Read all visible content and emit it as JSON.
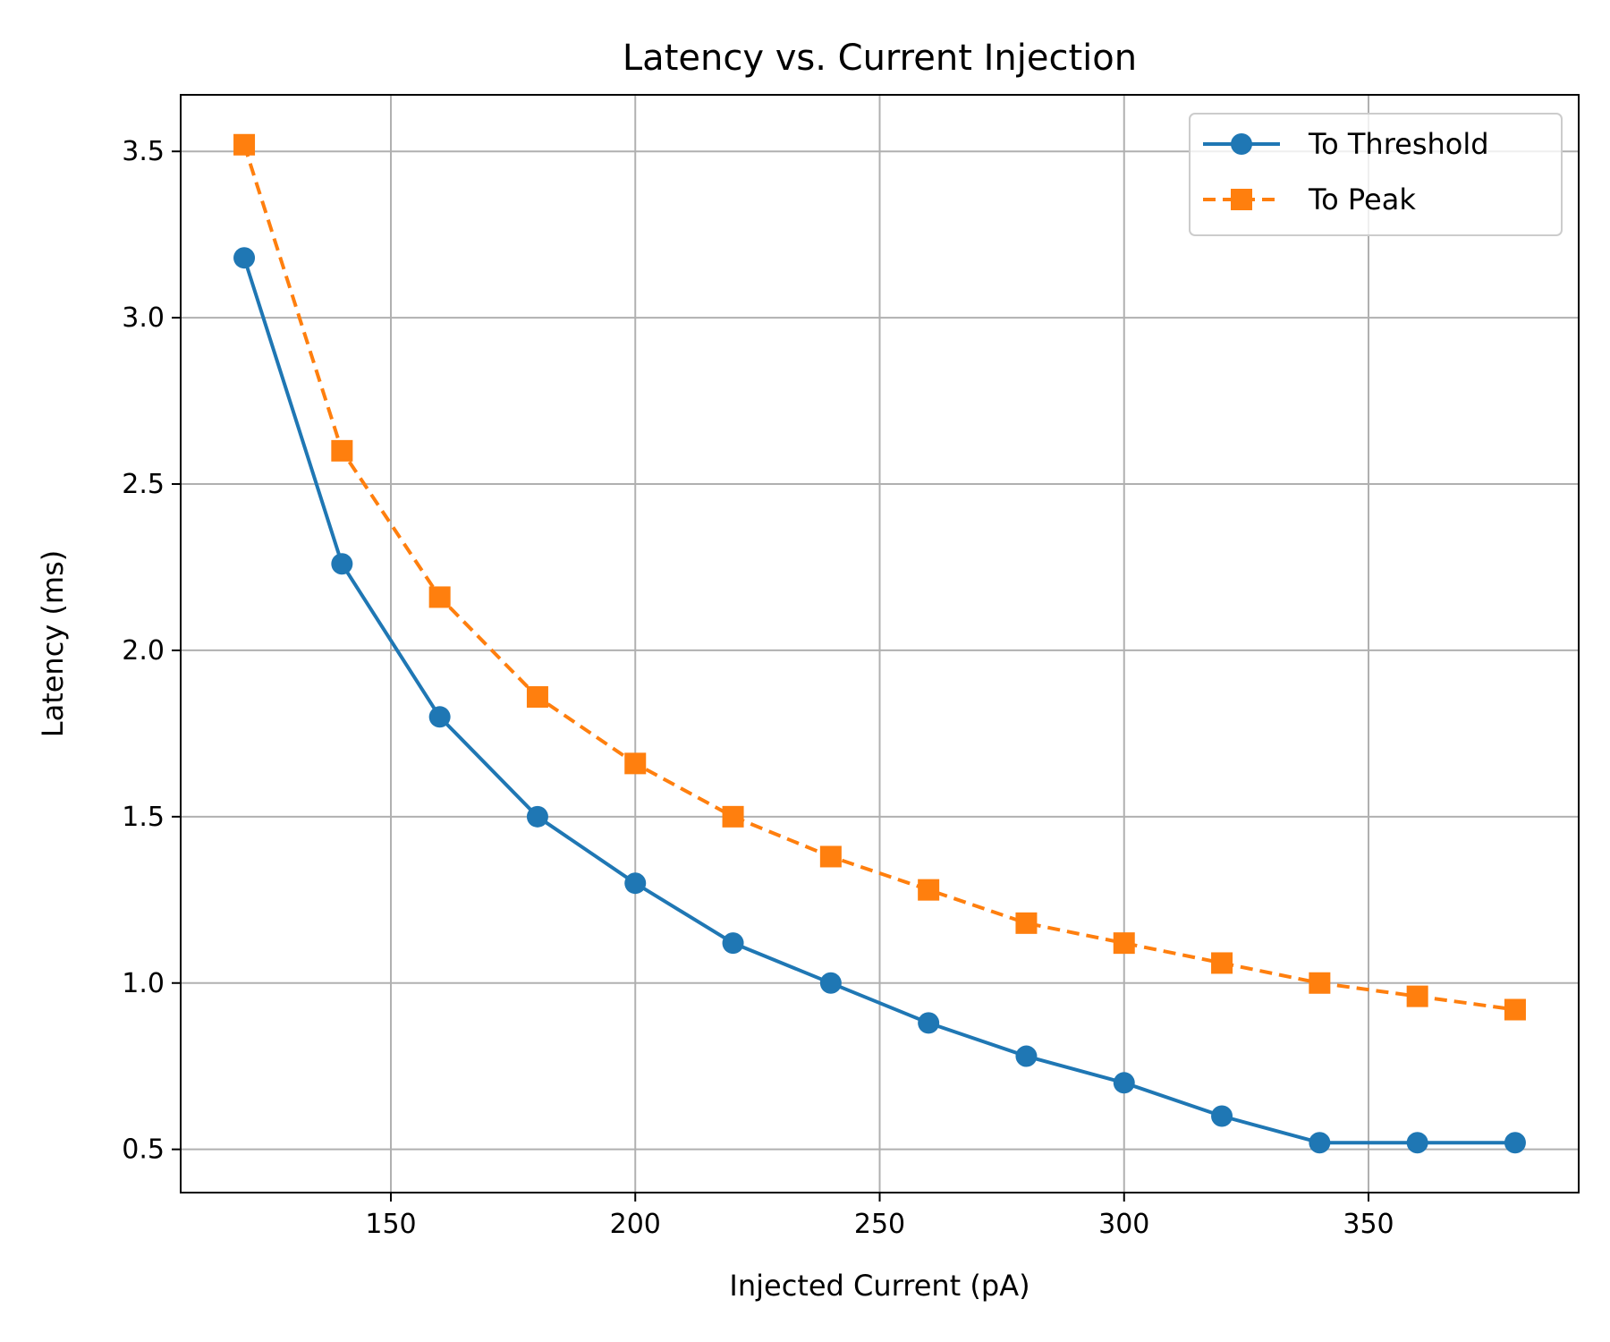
{
  "chart_data": {
    "type": "line",
    "title": "Latency vs. Current Injection",
    "xlabel": "Injected Current (pA)",
    "ylabel": "Latency (ms)",
    "xlim": [
      107,
      393
    ],
    "ylim": [
      0.37,
      3.67
    ],
    "xticks": [
      150,
      200,
      250,
      300,
      350
    ],
    "yticks": [
      0.5,
      1.0,
      1.5,
      2.0,
      2.5,
      3.0,
      3.5
    ],
    "xtick_labels": [
      "150",
      "200",
      "250",
      "300",
      "350"
    ],
    "ytick_labels": [
      "0.5",
      "1.0",
      "1.5",
      "2.0",
      "2.5",
      "3.0",
      "3.5"
    ],
    "grid": true,
    "legend_position": "top-right",
    "x": [
      120,
      140,
      160,
      180,
      200,
      220,
      240,
      260,
      280,
      300,
      320,
      340,
      360,
      380
    ],
    "series": [
      {
        "name": "To Threshold",
        "color": "#1f77b4",
        "line_style": "solid",
        "marker": "circle",
        "values": [
          3.18,
          2.26,
          1.8,
          1.5,
          1.3,
          1.12,
          1.0,
          0.88,
          0.78,
          0.7,
          0.6,
          0.52,
          0.52,
          0.52
        ]
      },
      {
        "name": "To Peak",
        "color": "#ff7f0e",
        "line_style": "dashed",
        "marker": "square",
        "values": [
          3.52,
          2.6,
          2.16,
          1.86,
          1.66,
          1.5,
          1.38,
          1.28,
          1.18,
          1.12,
          1.06,
          1.0,
          0.96,
          0.92
        ]
      }
    ]
  }
}
